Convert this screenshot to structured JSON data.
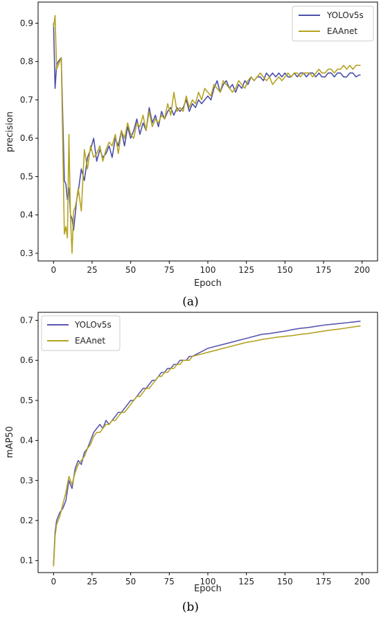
{
  "chart_data": [
    {
      "type": "line",
      "panel_label": "(a)",
      "xlabel": "Epoch",
      "ylabel": "precision",
      "xlim": [
        -10,
        210
      ],
      "ylim": [
        0.28,
        0.955
      ],
      "xticks": [
        0,
        25,
        50,
        75,
        100,
        125,
        150,
        175,
        200
      ],
      "yticks": [
        0.3,
        0.4,
        0.5,
        0.6,
        0.7,
        0.8,
        0.9
      ],
      "grid": false,
      "legend": "top-right",
      "series": [
        {
          "name": "YOLOv5s",
          "color": "#4a4fa8",
          "x": [
            0,
            1,
            2,
            3,
            5,
            7,
            8,
            9,
            10,
            11,
            12,
            13,
            14,
            15,
            16,
            18,
            20,
            22,
            24,
            26,
            28,
            30,
            32,
            34,
            36,
            38,
            40,
            42,
            44,
            46,
            48,
            50,
            52,
            54,
            56,
            58,
            60,
            62,
            64,
            66,
            68,
            70,
            72,
            74,
            76,
            78,
            80,
            82,
            84,
            86,
            88,
            90,
            92,
            94,
            96,
            98,
            100,
            102,
            104,
            106,
            108,
            110,
            112,
            114,
            116,
            118,
            120,
            122,
            124,
            126,
            128,
            130,
            132,
            134,
            136,
            138,
            140,
            142,
            144,
            146,
            148,
            150,
            152,
            154,
            156,
            158,
            160,
            162,
            164,
            166,
            168,
            170,
            172,
            174,
            176,
            178,
            180,
            182,
            184,
            186,
            188,
            190,
            192,
            194,
            196,
            198,
            199
          ],
          "values": [
            0.9,
            0.73,
            0.79,
            0.8,
            0.81,
            0.49,
            0.48,
            0.44,
            0.47,
            0.4,
            0.39,
            0.36,
            0.4,
            0.44,
            0.46,
            0.52,
            0.49,
            0.55,
            0.57,
            0.6,
            0.54,
            0.57,
            0.55,
            0.56,
            0.58,
            0.55,
            0.6,
            0.58,
            0.62,
            0.58,
            0.63,
            0.6,
            0.62,
            0.65,
            0.61,
            0.64,
            0.62,
            0.68,
            0.64,
            0.66,
            0.63,
            0.67,
            0.65,
            0.67,
            0.68,
            0.66,
            0.68,
            0.67,
            0.68,
            0.7,
            0.67,
            0.69,
            0.68,
            0.7,
            0.69,
            0.7,
            0.71,
            0.7,
            0.73,
            0.75,
            0.72,
            0.74,
            0.75,
            0.73,
            0.74,
            0.72,
            0.74,
            0.73,
            0.75,
            0.74,
            0.76,
            0.75,
            0.76,
            0.76,
            0.75,
            0.77,
            0.76,
            0.77,
            0.76,
            0.77,
            0.76,
            0.77,
            0.76,
            0.76,
            0.77,
            0.76,
            0.77,
            0.77,
            0.76,
            0.77,
            0.77,
            0.76,
            0.77,
            0.76,
            0.76,
            0.77,
            0.77,
            0.76,
            0.77,
            0.77,
            0.76,
            0.76,
            0.77,
            0.77,
            0.76,
            0.765,
            0.765
          ]
        },
        {
          "name": "EAAnet",
          "color": "#b5a320",
          "x": [
            0,
            1,
            2,
            3,
            5,
            7,
            8,
            9,
            10,
            11,
            12,
            13,
            14,
            15,
            16,
            18,
            20,
            22,
            24,
            26,
            28,
            30,
            32,
            34,
            36,
            38,
            40,
            42,
            44,
            46,
            48,
            50,
            52,
            54,
            56,
            58,
            60,
            62,
            64,
            66,
            68,
            70,
            72,
            74,
            76,
            78,
            80,
            82,
            84,
            86,
            88,
            90,
            92,
            94,
            96,
            98,
            100,
            102,
            104,
            106,
            108,
            110,
            112,
            114,
            116,
            118,
            120,
            122,
            124,
            126,
            128,
            130,
            132,
            134,
            136,
            138,
            140,
            142,
            144,
            146,
            148,
            150,
            152,
            154,
            156,
            158,
            160,
            162,
            164,
            166,
            168,
            170,
            172,
            174,
            176,
            178,
            180,
            182,
            184,
            186,
            188,
            190,
            192,
            194,
            196,
            198,
            199
          ],
          "values": [
            0.89,
            0.92,
            0.78,
            0.79,
            0.81,
            0.35,
            0.37,
            0.34,
            0.61,
            0.39,
            0.3,
            0.41,
            0.42,
            0.44,
            0.47,
            0.41,
            0.57,
            0.52,
            0.58,
            0.55,
            0.56,
            0.58,
            0.54,
            0.57,
            0.59,
            0.58,
            0.61,
            0.56,
            0.62,
            0.6,
            0.64,
            0.61,
            0.6,
            0.64,
            0.63,
            0.66,
            0.62,
            0.67,
            0.63,
            0.65,
            0.64,
            0.66,
            0.65,
            0.69,
            0.66,
            0.72,
            0.67,
            0.68,
            0.67,
            0.71,
            0.68,
            0.7,
            0.69,
            0.72,
            0.7,
            0.73,
            0.72,
            0.71,
            0.74,
            0.73,
            0.72,
            0.75,
            0.74,
            0.73,
            0.72,
            0.73,
            0.75,
            0.74,
            0.73,
            0.75,
            0.76,
            0.75,
            0.76,
            0.77,
            0.76,
            0.75,
            0.76,
            0.74,
            0.75,
            0.76,
            0.75,
            0.76,
            0.77,
            0.76,
            0.77,
            0.77,
            0.76,
            0.77,
            0.77,
            0.77,
            0.76,
            0.77,
            0.78,
            0.77,
            0.77,
            0.78,
            0.78,
            0.77,
            0.78,
            0.78,
            0.79,
            0.78,
            0.79,
            0.78,
            0.79,
            0.79,
            0.79
          ]
        }
      ]
    },
    {
      "type": "line",
      "panel_label": "(b)",
      "xlabel": "Epoch",
      "ylabel": "mAP50",
      "xlim": [
        -10,
        210
      ],
      "ylim": [
        0.07,
        0.72
      ],
      "xticks": [
        0,
        25,
        50,
        75,
        100,
        125,
        150,
        175,
        200
      ],
      "yticks": [
        0.1,
        0.2,
        0.3,
        0.4,
        0.5,
        0.6,
        0.7
      ],
      "grid": false,
      "legend": "top-left",
      "series": [
        {
          "name": "YOLOv5s",
          "color": "#5a56b0",
          "x": [
            0,
            1,
            2,
            4,
            6,
            8,
            10,
            12,
            14,
            16,
            18,
            20,
            22,
            24,
            26,
            28,
            30,
            32,
            34,
            36,
            38,
            40,
            42,
            44,
            46,
            48,
            50,
            52,
            54,
            56,
            58,
            60,
            62,
            64,
            66,
            68,
            70,
            72,
            74,
            76,
            78,
            80,
            82,
            84,
            86,
            88,
            90,
            95,
            100,
            105,
            110,
            115,
            120,
            125,
            130,
            135,
            140,
            145,
            150,
            155,
            160,
            165,
            170,
            175,
            180,
            185,
            190,
            195,
            199
          ],
          "values": [
            0.09,
            0.17,
            0.2,
            0.22,
            0.23,
            0.25,
            0.3,
            0.28,
            0.33,
            0.35,
            0.34,
            0.37,
            0.38,
            0.4,
            0.42,
            0.43,
            0.44,
            0.43,
            0.45,
            0.44,
            0.45,
            0.46,
            0.47,
            0.47,
            0.48,
            0.49,
            0.5,
            0.5,
            0.51,
            0.52,
            0.53,
            0.53,
            0.54,
            0.55,
            0.55,
            0.56,
            0.57,
            0.57,
            0.58,
            0.58,
            0.59,
            0.59,
            0.6,
            0.6,
            0.6,
            0.61,
            0.61,
            0.62,
            0.63,
            0.635,
            0.64,
            0.645,
            0.65,
            0.655,
            0.66,
            0.665,
            0.667,
            0.67,
            0.673,
            0.677,
            0.68,
            0.682,
            0.685,
            0.688,
            0.69,
            0.692,
            0.694,
            0.696,
            0.698
          ]
        },
        {
          "name": "EAAnet",
          "color": "#b5a320",
          "x": [
            0,
            1,
            2,
            4,
            6,
            8,
            10,
            12,
            14,
            16,
            18,
            20,
            22,
            24,
            26,
            28,
            30,
            32,
            34,
            36,
            38,
            40,
            42,
            44,
            46,
            48,
            50,
            52,
            54,
            56,
            58,
            60,
            62,
            64,
            66,
            68,
            70,
            72,
            74,
            76,
            78,
            80,
            82,
            84,
            86,
            88,
            90,
            95,
            100,
            105,
            110,
            115,
            120,
            125,
            130,
            135,
            140,
            145,
            150,
            155,
            160,
            165,
            170,
            175,
            180,
            185,
            190,
            195,
            199
          ],
          "values": [
            0.085,
            0.16,
            0.19,
            0.21,
            0.24,
            0.27,
            0.31,
            0.29,
            0.32,
            0.34,
            0.35,
            0.36,
            0.38,
            0.39,
            0.41,
            0.42,
            0.42,
            0.43,
            0.44,
            0.44,
            0.45,
            0.45,
            0.46,
            0.47,
            0.47,
            0.48,
            0.49,
            0.5,
            0.51,
            0.51,
            0.52,
            0.53,
            0.53,
            0.54,
            0.55,
            0.56,
            0.56,
            0.57,
            0.57,
            0.58,
            0.58,
            0.59,
            0.59,
            0.6,
            0.6,
            0.6,
            0.61,
            0.615,
            0.62,
            0.625,
            0.63,
            0.635,
            0.64,
            0.645,
            0.648,
            0.652,
            0.655,
            0.658,
            0.66,
            0.662,
            0.665,
            0.667,
            0.67,
            0.673,
            0.676,
            0.678,
            0.681,
            0.684,
            0.686
          ]
        }
      ]
    }
  ]
}
